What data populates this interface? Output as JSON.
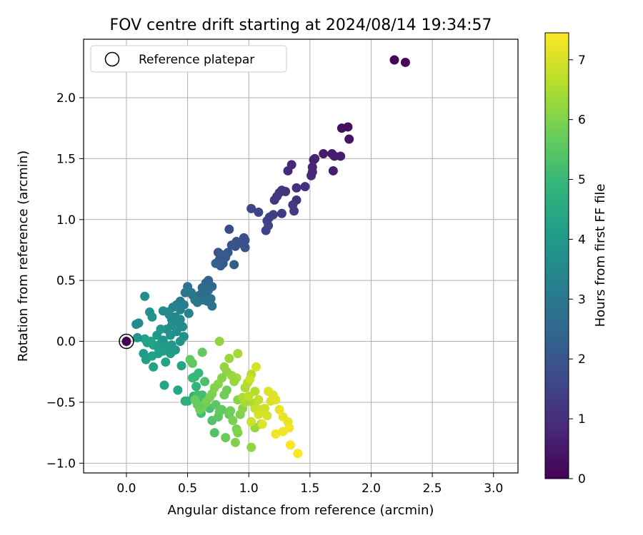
{
  "chart_data": {
    "type": "scatter",
    "title": "FOV centre drift starting at 2024/08/14 19:34:57",
    "xlabel": "Angular distance from reference (arcmin)",
    "ylabel": "Rotation from reference (arcmin)",
    "xlim": [
      -0.35,
      3.2
    ],
    "ylim": [
      -1.08,
      2.48
    ],
    "xticks": [
      0.0,
      0.5,
      1.0,
      1.5,
      2.0,
      2.5,
      3.0
    ],
    "yticks": [
      -1.0,
      -0.5,
      0.0,
      0.5,
      1.0,
      1.5,
      2.0
    ],
    "grid": true,
    "legend": {
      "position": "top-left",
      "entries": [
        "Reference platepar"
      ]
    },
    "reference_point": {
      "x": 0.0,
      "y": 0.0
    },
    "colorbar": {
      "label": "Hours from first FF file",
      "colormap": "viridis",
      "range": [
        0,
        7.45
      ],
      "ticks": [
        0,
        1,
        2,
        3,
        4,
        5,
        6,
        7
      ]
    },
    "colormap_stops": [
      "#440154",
      "#482878",
      "#3e4989",
      "#31688e",
      "#26828e",
      "#1f9e89",
      "#35b779",
      "#6ece58",
      "#b5de2b",
      "#fde725"
    ],
    "series": [
      {
        "columns": [
          "x",
          "y",
          "hours"
        ],
        "points": [
          [
            0.0,
            0.0,
            0.0
          ],
          [
            2.19,
            2.31,
            0.1
          ],
          [
            2.28,
            2.29,
            0.15
          ],
          [
            1.76,
            1.75,
            0.3
          ],
          [
            1.81,
            1.76,
            0.3
          ],
          [
            1.82,
            1.66,
            0.4
          ],
          [
            1.61,
            1.54,
            0.5
          ],
          [
            1.68,
            1.54,
            0.5
          ],
          [
            1.7,
            1.52,
            0.6
          ],
          [
            1.75,
            1.52,
            0.6
          ],
          [
            1.69,
            1.4,
            0.6
          ],
          [
            1.53,
            1.49,
            0.7
          ],
          [
            1.54,
            1.5,
            0.7
          ],
          [
            1.52,
            1.43,
            0.8
          ],
          [
            1.51,
            1.36,
            0.8
          ],
          [
            1.52,
            1.39,
            0.8
          ],
          [
            1.32,
            1.4,
            0.9
          ],
          [
            1.35,
            1.45,
            0.9
          ],
          [
            1.46,
            1.27,
            1.0
          ],
          [
            1.39,
            1.26,
            1.0
          ],
          [
            1.39,
            1.16,
            1.0
          ],
          [
            1.27,
            1.24,
            1.1
          ],
          [
            1.3,
            1.23,
            1.1
          ],
          [
            1.25,
            1.22,
            1.2
          ],
          [
            1.23,
            1.19,
            1.2
          ],
          [
            1.21,
            1.16,
            1.2
          ],
          [
            1.36,
            1.12,
            1.3
          ],
          [
            1.37,
            1.07,
            1.3
          ],
          [
            1.27,
            1.05,
            1.3
          ],
          [
            1.2,
            1.04,
            1.4
          ],
          [
            1.17,
            1.02,
            1.4
          ],
          [
            1.15,
            0.99,
            1.4
          ],
          [
            1.14,
            0.91,
            1.5
          ],
          [
            1.16,
            0.95,
            1.5
          ],
          [
            1.02,
            1.09,
            1.6
          ],
          [
            1.08,
            1.06,
            1.6
          ],
          [
            0.84,
            0.92,
            1.7
          ],
          [
            0.96,
            0.85,
            1.8
          ],
          [
            0.97,
            0.83,
            1.8
          ],
          [
            0.95,
            0.8,
            1.8
          ],
          [
            0.97,
            0.77,
            1.9
          ],
          [
            0.9,
            0.82,
            1.9
          ],
          [
            0.89,
            0.78,
            1.9
          ],
          [
            0.86,
            0.79,
            2.0
          ],
          [
            0.83,
            0.73,
            2.0
          ],
          [
            0.75,
            0.73,
            2.0
          ],
          [
            0.78,
            0.71,
            2.1
          ],
          [
            0.81,
            0.69,
            2.1
          ],
          [
            0.76,
            0.67,
            2.1
          ],
          [
            0.79,
            0.64,
            2.2
          ],
          [
            0.77,
            0.62,
            2.2
          ],
          [
            0.88,
            0.63,
            2.2
          ],
          [
            0.73,
            0.64,
            2.3
          ],
          [
            0.67,
            0.5,
            2.4
          ],
          [
            0.65,
            0.48,
            2.4
          ],
          [
            0.7,
            0.45,
            2.5
          ],
          [
            0.62,
            0.44,
            2.5
          ],
          [
            0.63,
            0.4,
            2.6
          ],
          [
            0.67,
            0.42,
            2.6
          ],
          [
            0.6,
            0.38,
            2.6
          ],
          [
            0.64,
            0.36,
            2.7
          ],
          [
            0.69,
            0.35,
            2.7
          ],
          [
            0.62,
            0.34,
            2.7
          ],
          [
            0.66,
            0.33,
            2.8
          ],
          [
            0.7,
            0.29,
            2.8
          ],
          [
            0.5,
            0.45,
            2.8
          ],
          [
            0.48,
            0.4,
            2.9
          ],
          [
            0.53,
            0.4,
            2.9
          ],
          [
            0.54,
            0.38,
            3.0
          ],
          [
            0.56,
            0.34,
            3.0
          ],
          [
            0.58,
            0.32,
            3.0
          ],
          [
            0.44,
            0.33,
            3.1
          ],
          [
            0.41,
            0.3,
            3.1
          ],
          [
            0.47,
            0.3,
            3.2
          ],
          [
            0.44,
            0.26,
            3.2
          ],
          [
            0.38,
            0.28,
            3.3
          ],
          [
            0.35,
            0.22,
            3.3
          ],
          [
            0.51,
            0.23,
            3.4
          ],
          [
            0.4,
            0.2,
            3.4
          ],
          [
            0.37,
            0.18,
            3.5
          ],
          [
            0.34,
            0.24,
            3.5
          ],
          [
            0.3,
            0.25,
            3.6
          ],
          [
            0.42,
            0.15,
            3.6
          ],
          [
            0.46,
            0.12,
            3.6
          ],
          [
            0.37,
            0.13,
            3.7
          ],
          [
            0.33,
            0.1,
            3.7
          ],
          [
            0.41,
            0.08,
            3.7
          ],
          [
            0.36,
            0.05,
            3.8
          ],
          [
            0.47,
            0.04,
            3.8
          ],
          [
            0.44,
            0.0,
            3.8
          ],
          [
            0.3,
            0.01,
            3.9
          ],
          [
            0.28,
            -0.02,
            3.9
          ],
          [
            0.37,
            -0.03,
            4.0
          ],
          [
            0.33,
            -0.04,
            4.0
          ],
          [
            0.4,
            -0.07,
            4.0
          ],
          [
            0.36,
            -0.1,
            4.1
          ],
          [
            0.3,
            -0.08,
            4.1
          ],
          [
            0.25,
            -0.04,
            4.2
          ],
          [
            0.22,
            -0.03,
            4.2
          ],
          [
            0.17,
            -0.01,
            4.2
          ],
          [
            0.2,
            0.0,
            4.3
          ],
          [
            0.15,
            0.02,
            4.3
          ],
          [
            0.09,
            0.03,
            3.9
          ],
          [
            0.08,
            0.14,
            3.6
          ],
          [
            0.1,
            0.15,
            3.6
          ],
          [
            0.15,
            0.37,
            3.7
          ],
          [
            0.19,
            0.24,
            3.8
          ],
          [
            0.21,
            0.2,
            3.8
          ],
          [
            0.14,
            -0.1,
            4.1
          ],
          [
            0.16,
            -0.15,
            4.2
          ],
          [
            0.21,
            -0.12,
            4.3
          ],
          [
            0.22,
            -0.21,
            4.3
          ],
          [
            0.26,
            -0.1,
            4.2
          ],
          [
            0.32,
            -0.17,
            4.3
          ],
          [
            0.31,
            -0.36,
            4.4
          ],
          [
            0.42,
            -0.4,
            4.4
          ],
          [
            0.45,
            -0.2,
            4.4
          ],
          [
            0.28,
            0.1,
            4.0
          ],
          [
            0.25,
            0.05,
            4.0
          ],
          [
            0.51,
            0.23,
            3.4
          ],
          [
            0.44,
            0.18,
            3.5
          ],
          [
            0.48,
            -0.49,
            4.6
          ],
          [
            0.5,
            -0.49,
            4.7
          ],
          [
            0.55,
            -0.45,
            4.8
          ],
          [
            0.57,
            -0.37,
            4.9
          ],
          [
            0.56,
            -0.29,
            4.9
          ],
          [
            0.59,
            -0.26,
            5.0
          ],
          [
            0.54,
            -0.3,
            5.0
          ],
          [
            0.58,
            -0.44,
            5.1
          ],
          [
            0.63,
            -0.48,
            5.1
          ],
          [
            0.62,
            -0.44,
            5.2
          ],
          [
            0.61,
            -0.59,
            5.2
          ],
          [
            0.68,
            -0.55,
            5.3
          ],
          [
            0.64,
            -0.33,
            5.3
          ],
          [
            0.7,
            -0.65,
            5.4
          ],
          [
            0.72,
            -0.75,
            5.4
          ],
          [
            0.73,
            -0.52,
            5.5
          ],
          [
            0.75,
            -0.62,
            5.5
          ],
          [
            0.76,
            -0.58,
            5.6
          ],
          [
            0.78,
            -0.56,
            5.6
          ],
          [
            0.81,
            -0.79,
            5.7
          ],
          [
            0.84,
            -0.6,
            5.7
          ],
          [
            0.85,
            -0.57,
            5.8
          ],
          [
            0.8,
            -0.44,
            5.8
          ],
          [
            0.82,
            -0.4,
            5.8
          ],
          [
            0.87,
            -0.65,
            5.9
          ],
          [
            0.9,
            -0.72,
            5.9
          ],
          [
            0.91,
            -0.75,
            6.0
          ],
          [
            0.89,
            -0.83,
            6.0
          ],
          [
            0.93,
            -0.6,
            6.0
          ],
          [
            0.95,
            -0.55,
            6.1
          ],
          [
            0.91,
            -0.48,
            6.1
          ],
          [
            1.02,
            -0.87,
            6.2
          ],
          [
            1.02,
            -0.66,
            6.2
          ],
          [
            1.05,
            -0.71,
            6.3
          ],
          [
            1.1,
            -0.68,
            6.3
          ],
          [
            1.06,
            -0.55,
            6.4
          ],
          [
            1.12,
            -0.58,
            6.4
          ],
          [
            0.97,
            -0.5,
            6.4
          ],
          [
            0.95,
            -0.46,
            6.5
          ],
          [
            1.04,
            -0.51,
            6.5
          ],
          [
            0.97,
            -0.38,
            6.5
          ],
          [
            0.99,
            -0.34,
            6.6
          ],
          [
            1.05,
            -0.41,
            6.6
          ],
          [
            1.02,
            -0.27,
            6.6
          ],
          [
            0.9,
            -0.3,
            6.4
          ],
          [
            0.88,
            -0.33,
            6.3
          ],
          [
            0.86,
            -0.28,
            6.3
          ],
          [
            0.82,
            -0.25,
            6.2
          ],
          [
            0.8,
            -0.21,
            6.2
          ],
          [
            0.78,
            -0.3,
            6.1
          ],
          [
            0.75,
            -0.35,
            6.1
          ],
          [
            0.72,
            -0.38,
            6.0
          ],
          [
            0.7,
            -0.43,
            6.0
          ],
          [
            0.68,
            -0.46,
            5.9
          ],
          [
            0.65,
            -0.5,
            5.9
          ],
          [
            0.62,
            -0.54,
            5.8
          ],
          [
            0.6,
            -0.56,
            5.8
          ],
          [
            0.58,
            -0.52,
            5.7
          ],
          [
            0.56,
            -0.48,
            5.7
          ],
          [
            0.52,
            -0.15,
            5.6
          ],
          [
            0.54,
            -0.18,
            5.6
          ],
          [
            0.62,
            -0.09,
            5.6
          ],
          [
            0.76,
            0.0,
            6.2
          ],
          [
            0.84,
            -0.14,
            6.3
          ],
          [
            0.91,
            -0.1,
            6.4
          ],
          [
            1.0,
            -0.45,
            6.7
          ],
          [
            1.05,
            -0.55,
            6.8
          ],
          [
            1.08,
            -0.48,
            6.8
          ],
          [
            1.1,
            -0.56,
            6.9
          ],
          [
            1.13,
            -0.55,
            6.9
          ],
          [
            1.15,
            -0.61,
            7.0
          ],
          [
            1.18,
            -0.49,
            7.0
          ],
          [
            1.2,
            -0.44,
            7.1
          ],
          [
            1.16,
            -0.41,
            7.1
          ],
          [
            1.22,
            -0.48,
            7.1
          ],
          [
            1.25,
            -0.56,
            7.2
          ],
          [
            1.28,
            -0.62,
            7.2
          ],
          [
            1.32,
            -0.66,
            7.2
          ],
          [
            1.33,
            -0.71,
            7.3
          ],
          [
            1.28,
            -0.74,
            7.3
          ],
          [
            1.22,
            -0.76,
            7.3
          ],
          [
            1.34,
            -0.85,
            7.4
          ],
          [
            1.4,
            -0.92,
            7.45
          ],
          [
            1.11,
            -0.68,
            7.1
          ],
          [
            1.08,
            -0.6,
            7.0
          ],
          [
            1.02,
            -0.66,
            6.9
          ],
          [
            1.06,
            -0.21,
            7.0
          ],
          [
            1.01,
            -0.31,
            6.9
          ]
        ]
      }
    ]
  }
}
